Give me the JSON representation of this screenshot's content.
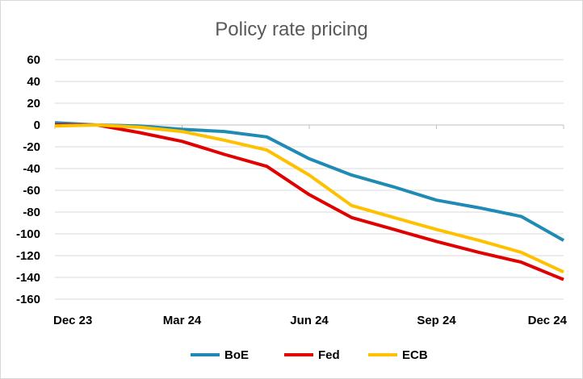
{
  "chart_data": {
    "type": "line",
    "title": "Policy rate pricing",
    "xlabel": "",
    "ylabel": "",
    "ylim": [
      -160,
      60
    ],
    "yticks": [
      60,
      40,
      20,
      0,
      -20,
      -40,
      -60,
      -80,
      -100,
      -120,
      -140,
      -160
    ],
    "x_tick_labels": [
      "Dec 23",
      "Mar 24",
      "Jun 24",
      "Sep 24",
      "Dec 24"
    ],
    "x_tick_months": [
      0,
      3,
      6,
      9,
      12
    ],
    "grid": true,
    "legend_position": "bottom",
    "series": [
      {
        "name": "BoE",
        "color": "#1f8bb4",
        "points": [
          [
            0,
            2
          ],
          [
            1,
            0
          ],
          [
            2,
            -1
          ],
          [
            3,
            -4
          ],
          [
            4,
            -6
          ],
          [
            5,
            -11
          ],
          [
            6,
            -31
          ],
          [
            7,
            -46
          ],
          [
            8,
            -57
          ],
          [
            9,
            -69
          ],
          [
            10,
            -76
          ],
          [
            11,
            -84
          ],
          [
            12,
            -106
          ]
        ]
      },
      {
        "name": "Fed",
        "color": "#e00000",
        "points": [
          [
            0,
            0
          ],
          [
            1,
            0
          ],
          [
            2,
            -7
          ],
          [
            3,
            -15
          ],
          [
            4,
            -27
          ],
          [
            5,
            -38
          ],
          [
            6,
            -64
          ],
          [
            7,
            -85
          ],
          [
            8,
            -96
          ],
          [
            9,
            -107
          ],
          [
            10,
            -117
          ],
          [
            11,
            -126
          ],
          [
            12,
            -142
          ]
        ]
      },
      {
        "name": "ECB",
        "color": "#ffc000",
        "points": [
          [
            0,
            -1
          ],
          [
            1,
            0
          ],
          [
            2,
            -2
          ],
          [
            3,
            -6
          ],
          [
            4,
            -14
          ],
          [
            5,
            -23
          ],
          [
            6,
            -46
          ],
          [
            7,
            -74
          ],
          [
            8,
            -85
          ],
          [
            9,
            -96
          ],
          [
            10,
            -106
          ],
          [
            11,
            -117
          ],
          [
            12,
            -135
          ]
        ]
      }
    ]
  }
}
